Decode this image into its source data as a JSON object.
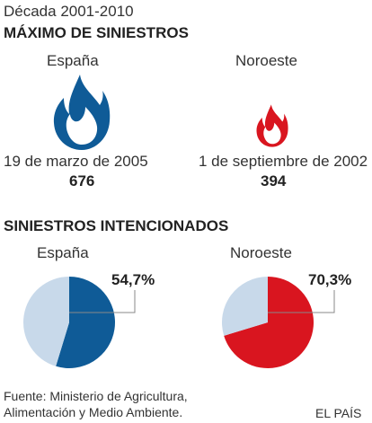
{
  "period": "Década 2001-2010",
  "section1": {
    "title": "MÁXIMO DE SINIESTROS",
    "espana": {
      "label": "España",
      "date": "19 de marzo de 2005",
      "count": "676"
    },
    "noroeste": {
      "label": "Noroeste",
      "date": "1 de septiembre de 2002",
      "count": "394"
    }
  },
  "section2": {
    "title": "SINIESTROS INTENCIONADOS",
    "espana": {
      "label": "España",
      "pct_label": "54,7%"
    },
    "noroeste": {
      "label": "Noroeste",
      "pct_label": "70,3%"
    }
  },
  "chart_data": [
    {
      "type": "pie",
      "title": "España",
      "series": [
        {
          "values": [
            54.7,
            45.3
          ]
        }
      ],
      "colors": [
        "#0f5b97",
        "#c8d9ea"
      ],
      "data_labels": [
        "54,7%"
      ]
    },
    {
      "type": "pie",
      "title": "Noroeste",
      "series": [
        {
          "values": [
            70.3,
            29.7
          ]
        }
      ],
      "colors": [
        "#d9151f",
        "#c8d9ea"
      ],
      "data_labels": [
        "70,3%"
      ]
    }
  ],
  "icons": {
    "flame": "flame-icon"
  },
  "colors": {
    "espana": "#0f5b97",
    "noroeste": "#d9151f",
    "remainder": "#c8d9ea"
  },
  "source": {
    "line1": "Fuente: Ministerio de Agricultura,",
    "line2": "Alimentación y Medio Ambiente."
  },
  "brand": "EL PAÍS"
}
